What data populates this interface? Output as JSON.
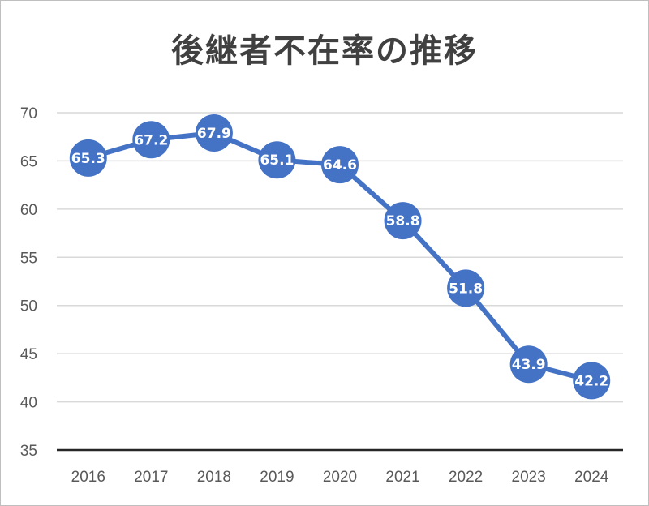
{
  "chart_data": {
    "type": "line",
    "title": "後継者不在率の推移",
    "xlabel": "",
    "ylabel": "",
    "categories": [
      "2016",
      "2017",
      "2018",
      "2019",
      "2020",
      "2021",
      "2022",
      "2023",
      "2024"
    ],
    "series": [
      {
        "values": [
          65.3,
          67.2,
          67.9,
          65.1,
          64.6,
          58.8,
          51.8,
          43.9,
          42.2
        ],
        "labels": [
          "65.3",
          "67.2",
          "67.9",
          "65.1",
          "64.6",
          "58.8",
          "51.8",
          "43.9",
          "42.2"
        ]
      }
    ],
    "ylim": [
      35,
      70
    ],
    "yticks": [
      "35",
      "40",
      "45",
      "50",
      "55",
      "60",
      "65",
      "70"
    ],
    "grid": true,
    "legend": "none",
    "colors": {
      "series": "#4472c4",
      "grid": "#d9d9d9",
      "axis": "#262626"
    }
  }
}
